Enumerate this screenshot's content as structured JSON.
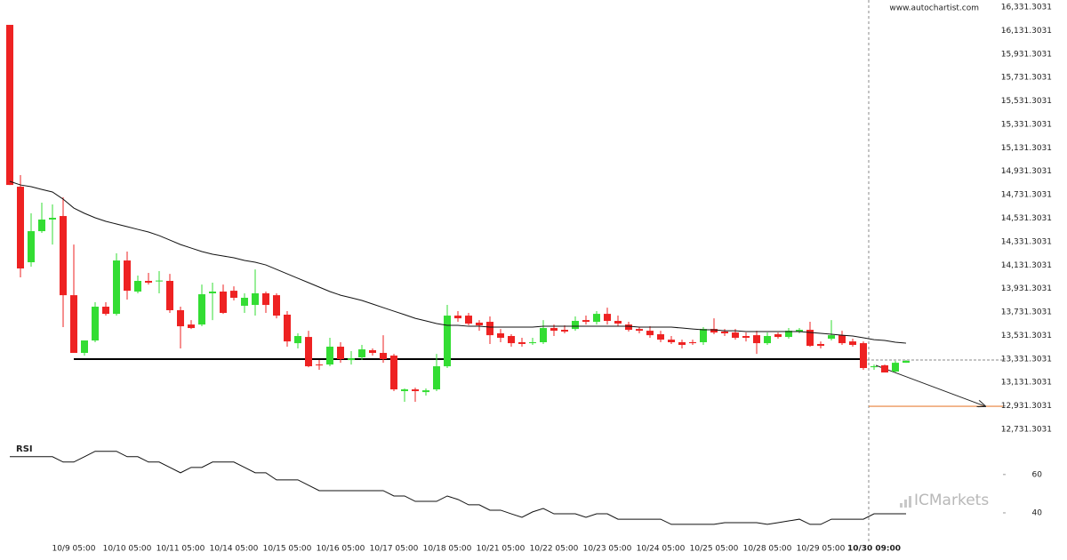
{
  "chart_data": {
    "type": "candlestick",
    "watermark": "www.autochartist.com",
    "brand": "ICMarkets",
    "up_color": "#33dd33",
    "down_color": "#ee2222",
    "ylim": [
      12731.3031,
      16331.3031
    ],
    "yticks": [
      {
        "value": 16331.3031,
        "label": "16,331.3031"
      },
      {
        "value": 16131.3031,
        "label": "16,131.3031"
      },
      {
        "value": 15931.3031,
        "label": "15,931.3031"
      },
      {
        "value": 15731.3031,
        "label": "15,731.3031"
      },
      {
        "value": 15531.3031,
        "label": "15,531.3031"
      },
      {
        "value": 15331.3031,
        "label": "15,331.3031"
      },
      {
        "value": 15131.3031,
        "label": "15,131.3031"
      },
      {
        "value": 14931.3031,
        "label": "14,931.3031"
      },
      {
        "value": 14731.3031,
        "label": "14,731.3031"
      },
      {
        "value": 14531.3031,
        "label": "14,531.3031"
      },
      {
        "value": 14331.3031,
        "label": "14,331.3031"
      },
      {
        "value": 14131.3031,
        "label": "14,131.3031"
      },
      {
        "value": 13931.3031,
        "label": "13,931.3031"
      },
      {
        "value": 13731.3031,
        "label": "13,731.3031"
      },
      {
        "value": 13531.3031,
        "label": "13,531.3031"
      },
      {
        "value": 13331.3031,
        "label": "13,331.3031"
      },
      {
        "value": 13131.3031,
        "label": "13,131.3031"
      },
      {
        "value": 12931.3031,
        "label": "12,931.3031"
      },
      {
        "value": 12731.3031,
        "label": "12,731.3031"
      }
    ],
    "categories": [
      null,
      null,
      null,
      null,
      null,
      null,
      "10/9 05:00",
      null,
      null,
      null,
      null,
      "10/10 05:00",
      null,
      null,
      null,
      null,
      "10/11 05:00",
      null,
      null,
      null,
      null,
      "10/14 05:00",
      null,
      null,
      null,
      null,
      "10/15 05:00",
      null,
      null,
      null,
      null,
      "10/16 05:00",
      null,
      null,
      null,
      null,
      "10/17 05:00",
      null,
      null,
      null,
      null,
      "10/18 05:00",
      null,
      null,
      null,
      null,
      "10/21 05:00",
      null,
      null,
      null,
      null,
      "10/22 05:00",
      null,
      null,
      null,
      null,
      "10/23 05:00",
      null,
      null,
      null,
      null,
      "10/24 05:00",
      null,
      null,
      null,
      null,
      "10/25 05:00",
      null,
      null,
      null,
      null,
      "10/28 05:00",
      null,
      null,
      null,
      null,
      "10/29 05:00",
      null,
      null,
      null,
      null,
      "10/30 09:00",
      null,
      null,
      null
    ],
    "open": [
      16180,
      14800,
      14156,
      14421,
      14520,
      14550,
      13875,
      13383,
      13489,
      13777,
      13716,
      14171,
      13906,
      13997,
      13997,
      13997,
      13747,
      13625,
      13625,
      13891,
      13906,
      13913,
      13785,
      13792,
      13891,
      13875,
      13709,
      13466,
      13519,
      13284,
      13284,
      13436,
      13322,
      13345,
      13406,
      13383,
      13360,
      13057,
      13072,
      13049,
      13072,
      13269,
      13701,
      13701,
      13641,
      13648,
      13550,
      13527,
      13474,
      13466,
      13474,
      13595,
      13580,
      13587,
      13663,
      13648,
      13716,
      13656,
      13625,
      13587,
      13572,
      13542,
      13496,
      13474,
      13474,
      13474,
      13587,
      13565,
      13557,
      13527,
      13534,
      13466,
      13542,
      13519,
      13565,
      13580,
      13459,
      13504,
      13534,
      13481,
      13466,
      13261,
      13277,
      13224,
      13299
    ],
    "high": [
      16180,
      14899,
      14573,
      14664,
      14649,
      14709,
      14307,
      13489,
      13815,
      13815,
      14232,
      14247,
      14042,
      14065,
      14080,
      14057,
      13777,
      13663,
      13966,
      13982,
      13966,
      13951,
      13891,
      14095,
      13906,
      13891,
      13739,
      13550,
      13572,
      13322,
      13512,
      13474,
      13398,
      13451,
      13421,
      13534,
      13375,
      13080,
      13087,
      13080,
      13375,
      13792,
      13739,
      13724,
      13663,
      13694,
      13587,
      13542,
      13512,
      13512,
      13663,
      13625,
      13618,
      13694,
      13701,
      13739,
      13769,
      13701,
      13648,
      13603,
      13610,
      13572,
      13527,
      13496,
      13496,
      13603,
      13678,
      13587,
      13587,
      13557,
      13572,
      13557,
      13557,
      13595,
      13595,
      13648,
      13481,
      13663,
      13572,
      13504,
      13481,
      13284,
      13284,
      13315,
      13322
    ],
    "low": [
      14815,
      14027,
      14118,
      14406,
      14307,
      13603,
      13383,
      13360,
      13474,
      13701,
      13701,
      13838,
      13891,
      13966,
      13891,
      13724,
      13421,
      13587,
      13610,
      13663,
      13716,
      13830,
      13724,
      13701,
      13724,
      13678,
      13436,
      13421,
      13261,
      13239,
      13269,
      13299,
      13284,
      13322,
      13360,
      13299,
      13057,
      12966,
      12966,
      13019,
      13057,
      13254,
      13648,
      13618,
      13572,
      13459,
      13474,
      13436,
      13436,
      13451,
      13459,
      13527,
      13550,
      13572,
      13625,
      13625,
      13625,
      13610,
      13565,
      13550,
      13512,
      13474,
      13459,
      13421,
      13451,
      13451,
      13542,
      13527,
      13496,
      13481,
      13375,
      13451,
      13504,
      13504,
      13550,
      13436,
      13421,
      13489,
      13451,
      13436,
      13239,
      13239,
      13216,
      13216,
      13299
    ],
    "close": [
      14815,
      14103,
      14421,
      14520,
      14535,
      13875,
      13383,
      13489,
      13777,
      13716,
      14171,
      13913,
      13997,
      13982,
      14000,
      13747,
      13610,
      13595,
      13883,
      13906,
      13724,
      13853,
      13853,
      13891,
      13792,
      13701,
      13481,
      13527,
      13269,
      13277,
      13436,
      13330,
      13337,
      13413,
      13383,
      13330,
      13072,
      13072,
      13057,
      13064,
      13269,
      13701,
      13678,
      13633,
      13618,
      13534,
      13512,
      13466,
      13459,
      13474,
      13595,
      13572,
      13565,
      13656,
      13648,
      13716,
      13656,
      13633,
      13580,
      13572,
      13534,
      13496,
      13474,
      13451,
      13466,
      13587,
      13557,
      13550,
      13512,
      13512,
      13466,
      13527,
      13519,
      13572,
      13580,
      13443,
      13443,
      13534,
      13466,
      13451,
      13254,
      13269,
      13216,
      13299,
      13315
    ],
    "moving_average": [
      14846,
      14815,
      14800,
      14777,
      14755,
      14694,
      14618,
      14573,
      14535,
      14505,
      14482,
      14459,
      14436,
      14414,
      14383,
      14345,
      14307,
      14277,
      14247,
      14224,
      14209,
      14194,
      14171,
      14156,
      14133,
      14095,
      14057,
      14019,
      13982,
      13944,
      13906,
      13875,
      13853,
      13830,
      13800,
      13769,
      13739,
      13709,
      13678,
      13656,
      13633,
      13618,
      13618,
      13610,
      13610,
      13603,
      13603,
      13603,
      13603,
      13603,
      13610,
      13610,
      13610,
      13610,
      13610,
      13610,
      13610,
      13610,
      13610,
      13603,
      13603,
      13603,
      13603,
      13595,
      13587,
      13580,
      13580,
      13572,
      13572,
      13565,
      13565,
      13565,
      13565,
      13565,
      13565,
      13557,
      13550,
      13542,
      13534,
      13527,
      13512,
      13496,
      13489,
      13474,
      13466
    ],
    "support": {
      "value": 13330,
      "from_index": 6
    },
    "current_level": 13322,
    "target_level": 12928,
    "rsi": {
      "label": "RSI",
      "ylim": [
        27,
        78
      ],
      "yticks": [
        60,
        40
      ],
      "values": [
        69.3,
        69.3,
        69.3,
        69.3,
        69.3,
        66.5,
        66.5,
        69.3,
        72.1,
        72.1,
        72.1,
        69.3,
        69.3,
        66.5,
        66.5,
        63.7,
        60.9,
        63.7,
        63.7,
        66.5,
        66.5,
        66.5,
        63.7,
        60.9,
        60.9,
        57.2,
        57.2,
        57.2,
        54.4,
        51.6,
        51.6,
        51.6,
        51.6,
        51.6,
        51.6,
        51.6,
        48.8,
        48.8,
        46.0,
        46.0,
        46.0,
        48.8,
        47.0,
        44.2,
        44.2,
        41.4,
        41.4,
        39.5,
        37.7,
        40.5,
        42.3,
        39.5,
        39.5,
        39.5,
        37.7,
        39.5,
        39.5,
        36.7,
        36.7,
        36.7,
        36.7,
        36.7,
        34.0,
        34.0,
        34.0,
        34.0,
        34.0,
        34.9,
        34.9,
        34.9,
        34.9,
        34.0,
        34.9,
        35.8,
        36.7,
        34.0,
        34.0,
        36.7,
        36.7,
        36.7,
        36.7,
        39.5,
        39.5,
        39.5,
        39.5
      ]
    }
  }
}
